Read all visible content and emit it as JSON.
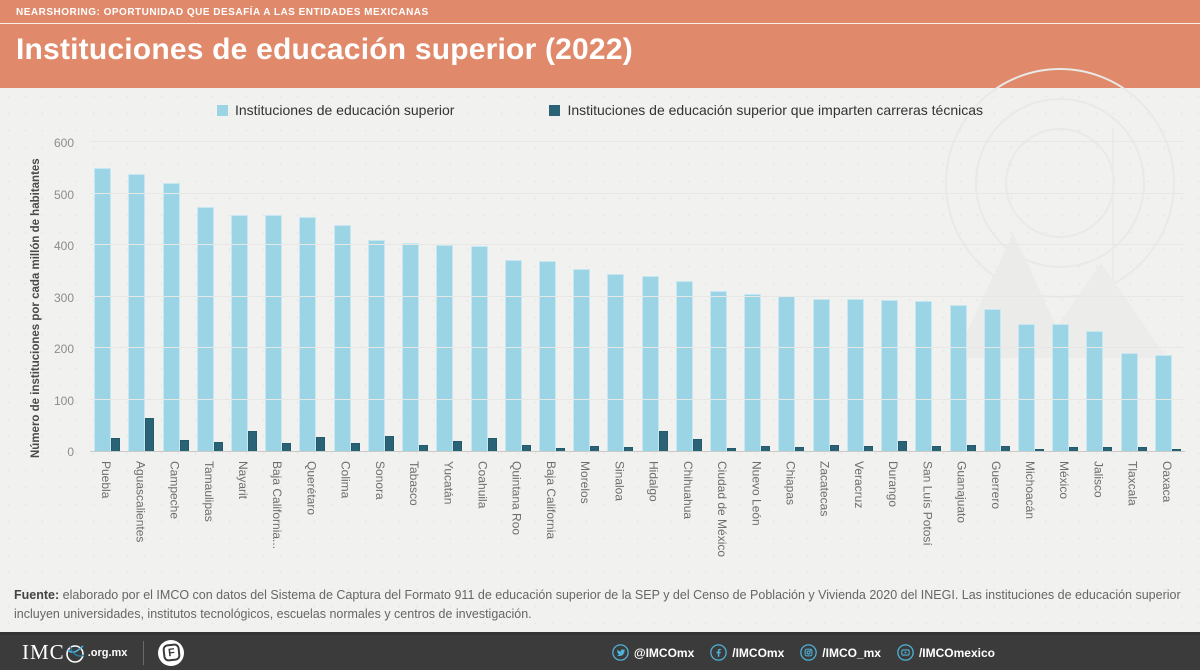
{
  "header": {
    "eyebrow": "NEARSHORING: OPORTUNIDAD QUE DESAFÍA A LAS ENTIDADES MEXICANAS",
    "title": "Instituciones de educación superior (2022)"
  },
  "legend": {
    "items": [
      {
        "label": "Instituciones de educación superior",
        "color": "#9BD4E4"
      },
      {
        "label": "Instituciones de educación superior que imparten carreras técnicas",
        "color": "#2B6376"
      }
    ]
  },
  "chart_data": {
    "type": "bar",
    "title": "Instituciones de educación superior (2022)",
    "ylabel": "Número de instituciones por cada millón de habitantes",
    "ylim": [
      0,
      600
    ],
    "yticks": [
      0,
      100,
      200,
      300,
      400,
      500,
      600
    ],
    "grid": true,
    "legend_position": "top",
    "categories": [
      "Puebla",
      "Aguascalientes",
      "Campeche",
      "Tamaulipas",
      "Nayarit",
      "Baja California...",
      "Querétaro",
      "Colima",
      "Sonora",
      "Tabasco",
      "Yucatán",
      "Coahuila",
      "Quintana Roo",
      "Baja California",
      "Morelos",
      "Sinaloa",
      "Hidalgo",
      "Chihuahua",
      "Ciudad de México",
      "Nuevo León",
      "Chiapas",
      "Zacatecas",
      "Veracruz",
      "Durango",
      "San Luís Potosí",
      "Guanajuato",
      "Guerrero",
      "Michoacán",
      "México",
      "Jalisco",
      "Tlaxcala",
      "Oaxaca"
    ],
    "series": [
      {
        "name": "Instituciones de educación superior",
        "color": "#9BD4E4",
        "values": [
          550,
          537,
          520,
          474,
          459,
          458,
          454,
          439,
          409,
          403,
          400,
          398,
          371,
          369,
          353,
          344,
          340,
          330,
          311,
          305,
          301,
          295,
          295,
          293,
          291,
          283,
          276,
          246,
          246,
          233,
          190,
          186
        ]
      },
      {
        "name": "Instituciones de educación superior que imparten carreras técnicas",
        "color": "#2B6376",
        "values": [
          25,
          65,
          22,
          17,
          38,
          16,
          27,
          15,
          30,
          11,
          20,
          26,
          12,
          6,
          9,
          8,
          38,
          23,
          6,
          9,
          7,
          12,
          9,
          20,
          10,
          12,
          10,
          4,
          7,
          7,
          8,
          3
        ]
      }
    ]
  },
  "footer": {
    "label": "Fuente:",
    "text": " elaborado por el IMCO con datos del Sistema de Captura del Formato 911 de educación superior de la SEP y del Censo de Población y Vivienda 2020 del INEGI. Las instituciones de educación superior incluyen universidades, institutos tecnológicos, escuelas normales y centros de investigación."
  },
  "bottombar": {
    "logo": "IMC",
    "logo_suffix": ".org.mx",
    "badge": "F",
    "accent": "#4FB3D9",
    "social": [
      {
        "icon": "twitter-icon",
        "handle": "@IMCOmx"
      },
      {
        "icon": "facebook-icon",
        "handle": "/IMCOmx"
      },
      {
        "icon": "instagram-icon",
        "handle": "/IMCO_mx"
      },
      {
        "icon": "youtube-icon",
        "handle": "/IMCOmexico"
      }
    ]
  }
}
